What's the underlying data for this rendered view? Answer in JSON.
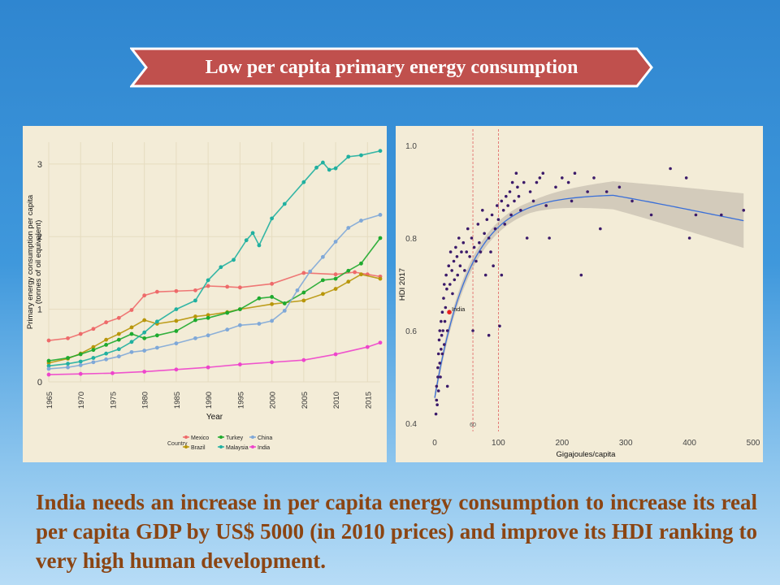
{
  "banner": {
    "title": "Low per capita primary energy consumption",
    "fill": "#c0504d"
  },
  "caption": "India needs an increase in per capita energy consumption to increase its real per capita GDP by US$ 5000 (in 2010 prices) and improve its HDI ranking to very high human development.",
  "chart_data": [
    {
      "type": "line",
      "title": "",
      "xlabel": "Year",
      "ylabel": "Primary energy consumption per capita (tonnes of oil equivalent)",
      "xlim": [
        1965,
        2017
      ],
      "ylim": [
        0,
        3.3
      ],
      "xticks": [
        "1965",
        "1970",
        "1975",
        "1980",
        "1985",
        "1990",
        "1995",
        "2000",
        "2005",
        "2010",
        "2015"
      ],
      "yticks": [
        "0",
        "1",
        "2",
        "3"
      ],
      "legend": {
        "title": "Country",
        "position": "bottom"
      },
      "series": [
        {
          "name": "Mexico",
          "color": "#ee6a6a",
          "x": [
            1965,
            1968,
            1970,
            1972,
            1974,
            1976,
            1978,
            1980,
            1982,
            1985,
            1988,
            1990,
            1993,
            1995,
            2000,
            2005,
            2010,
            2013,
            2015,
            2017
          ],
          "y": [
            0.57,
            0.6,
            0.66,
            0.73,
            0.82,
            0.88,
            0.99,
            1.19,
            1.24,
            1.25,
            1.26,
            1.32,
            1.31,
            1.3,
            1.35,
            1.5,
            1.48,
            1.51,
            1.48,
            1.45
          ]
        },
        {
          "name": "Brazil",
          "color": "#b8960a",
          "x": [
            1965,
            1968,
            1970,
            1972,
            1974,
            1976,
            1978,
            1980,
            1982,
            1985,
            1988,
            1990,
            1993,
            1995,
            2000,
            2005,
            2008,
            2010,
            2012,
            2014,
            2017
          ],
          "y": [
            0.26,
            0.32,
            0.39,
            0.48,
            0.58,
            0.66,
            0.75,
            0.85,
            0.8,
            0.84,
            0.9,
            0.92,
            0.96,
            1.0,
            1.07,
            1.12,
            1.21,
            1.28,
            1.38,
            1.48,
            1.42
          ]
        },
        {
          "name": "Turkey",
          "color": "#1eaa2e",
          "x": [
            1965,
            1968,
            1970,
            1972,
            1974,
            1976,
            1978,
            1980,
            1982,
            1985,
            1988,
            1990,
            1993,
            1995,
            1998,
            2000,
            2002,
            2005,
            2008,
            2010,
            2012,
            2014,
            2017
          ],
          "y": [
            0.29,
            0.33,
            0.38,
            0.44,
            0.51,
            0.58,
            0.66,
            0.6,
            0.64,
            0.7,
            0.85,
            0.88,
            0.95,
            1.0,
            1.15,
            1.17,
            1.08,
            1.23,
            1.4,
            1.42,
            1.53,
            1.63,
            1.98
          ]
        },
        {
          "name": "Malaysia",
          "color": "#20b0a0",
          "x": [
            1965,
            1968,
            1970,
            1972,
            1974,
            1976,
            1978,
            1980,
            1982,
            1985,
            1988,
            1990,
            1992,
            1994,
            1996,
            1997,
            1998,
            2000,
            2002,
            2005,
            2007,
            2008,
            2009,
            2010,
            2012,
            2014,
            2017
          ],
          "y": [
            0.22,
            0.25,
            0.28,
            0.33,
            0.39,
            0.45,
            0.55,
            0.68,
            0.83,
            1.0,
            1.12,
            1.4,
            1.58,
            1.68,
            1.95,
            2.05,
            1.88,
            2.25,
            2.45,
            2.75,
            2.95,
            3.02,
            2.92,
            2.94,
            3.1,
            3.12,
            3.18
          ]
        },
        {
          "name": "China",
          "color": "#7fa8d8",
          "x": [
            1965,
            1968,
            1970,
            1972,
            1974,
            1976,
            1978,
            1980,
            1982,
            1985,
            1988,
            1990,
            1993,
            1995,
            1998,
            2000,
            2002,
            2004,
            2006,
            2008,
            2010,
            2012,
            2014,
            2017
          ],
          "y": [
            0.18,
            0.2,
            0.23,
            0.27,
            0.31,
            0.35,
            0.41,
            0.43,
            0.47,
            0.53,
            0.6,
            0.64,
            0.72,
            0.78,
            0.8,
            0.84,
            0.98,
            1.26,
            1.52,
            1.72,
            1.93,
            2.12,
            2.22,
            2.3
          ]
        },
        {
          "name": "India",
          "color": "#ee44cc",
          "x": [
            1965,
            1970,
            1975,
            1980,
            1985,
            1990,
            1995,
            2000,
            2005,
            2010,
            2015,
            2017
          ],
          "y": [
            0.1,
            0.11,
            0.12,
            0.14,
            0.17,
            0.2,
            0.24,
            0.27,
            0.3,
            0.38,
            0.48,
            0.54
          ]
        }
      ]
    },
    {
      "type": "scatter",
      "title": "",
      "xlabel": "Gigajoules/capita",
      "ylabel": "HDI 2017",
      "xlim": [
        0,
        500
      ],
      "ylim": [
        0.4,
        1.0
      ],
      "xticks": [
        "0",
        "100",
        "200",
        "300",
        "400",
        "500"
      ],
      "yticks": [
        "0.4",
        "0.6",
        "0.8",
        "1.0"
      ],
      "vlines": [
        {
          "x": 60,
          "label": "60",
          "color": "#e06060"
        },
        {
          "x": 100,
          "label": "",
          "color": "#e06060"
        }
      ],
      "point_color": "#3b1a6a",
      "highlight": {
        "label": "India",
        "x": 23,
        "y": 0.64,
        "color": "#e82020"
      },
      "points": [
        [
          2,
          0.42
        ],
        [
          3,
          0.45
        ],
        [
          3,
          0.48
        ],
        [
          4,
          0.44
        ],
        [
          5,
          0.52
        ],
        [
          5,
          0.5
        ],
        [
          6,
          0.55
        ],
        [
          6,
          0.47
        ],
        [
          7,
          0.58
        ],
        [
          8,
          0.53
        ],
        [
          8,
          0.6
        ],
        [
          9,
          0.5
        ],
        [
          10,
          0.56
        ],
        [
          10,
          0.62
        ],
        [
          11,
          0.59
        ],
        [
          12,
          0.55
        ],
        [
          12,
          0.64
        ],
        [
          13,
          0.6
        ],
        [
          14,
          0.67
        ],
        [
          15,
          0.57
        ],
        [
          15,
          0.7
        ],
        [
          16,
          0.62
        ],
        [
          17,
          0.65
        ],
        [
          18,
          0.72
        ],
        [
          19,
          0.69
        ],
        [
          20,
          0.6
        ],
        [
          20,
          0.48
        ],
        [
          22,
          0.74
        ],
        [
          24,
          0.7
        ],
        [
          25,
          0.77
        ],
        [
          27,
          0.73
        ],
        [
          28,
          0.68
        ],
        [
          30,
          0.75
        ],
        [
          31,
          0.71
        ],
        [
          33,
          0.78
        ],
        [
          35,
          0.76
        ],
        [
          36,
          0.72
        ],
        [
          38,
          0.8
        ],
        [
          40,
          0.74
        ],
        [
          42,
          0.77
        ],
        [
          45,
          0.79
        ],
        [
          47,
          0.73
        ],
        [
          50,
          0.77
        ],
        [
          52,
          0.82
        ],
        [
          55,
          0.76
        ],
        [
          58,
          0.8
        ],
        [
          60,
          0.6
        ],
        [
          62,
          0.78
        ],
        [
          65,
          0.75
        ],
        [
          68,
          0.83
        ],
        [
          70,
          0.79
        ],
        [
          72,
          0.77
        ],
        [
          75,
          0.86
        ],
        [
          78,
          0.81
        ],
        [
          80,
          0.72
        ],
        [
          82,
          0.84
        ],
        [
          85,
          0.8
        ],
        [
          85,
          0.59
        ],
        [
          88,
          0.77
        ],
        [
          90,
          0.85
        ],
        [
          92,
          0.74
        ],
        [
          95,
          0.82
        ],
        [
          98,
          0.87
        ],
        [
          100,
          0.84
        ],
        [
          102,
          0.61
        ],
        [
          105,
          0.72
        ],
        [
          105,
          0.88
        ],
        [
          108,
          0.86
        ],
        [
          110,
          0.83
        ],
        [
          112,
          0.89
        ],
        [
          115,
          0.87
        ],
        [
          118,
          0.9
        ],
        [
          120,
          0.85
        ],
        [
          122,
          0.92
        ],
        [
          125,
          0.88
        ],
        [
          128,
          0.94
        ],
        [
          130,
          0.91
        ],
        [
          132,
          0.89
        ],
        [
          135,
          0.86
        ],
        [
          140,
          0.92
        ],
        [
          145,
          0.8
        ],
        [
          150,
          0.9
        ],
        [
          155,
          0.88
        ],
        [
          160,
          0.92
        ],
        [
          165,
          0.93
        ],
        [
          170,
          0.94
        ],
        [
          175,
          0.87
        ],
        [
          180,
          0.8
        ],
        [
          190,
          0.91
        ],
        [
          200,
          0.93
        ],
        [
          210,
          0.92
        ],
        [
          215,
          0.88
        ],
        [
          220,
          0.94
        ],
        [
          230,
          0.72
        ],
        [
          240,
          0.9
        ],
        [
          250,
          0.93
        ],
        [
          260,
          0.82
        ],
        [
          270,
          0.9
        ],
        [
          290,
          0.91
        ],
        [
          310,
          0.88
        ],
        [
          340,
          0.85
        ],
        [
          370,
          0.95
        ],
        [
          395,
          0.93
        ],
        [
          400,
          0.8
        ],
        [
          410,
          0.85
        ],
        [
          450,
          0.85
        ],
        [
          485,
          0.86
        ]
      ]
    }
  ]
}
